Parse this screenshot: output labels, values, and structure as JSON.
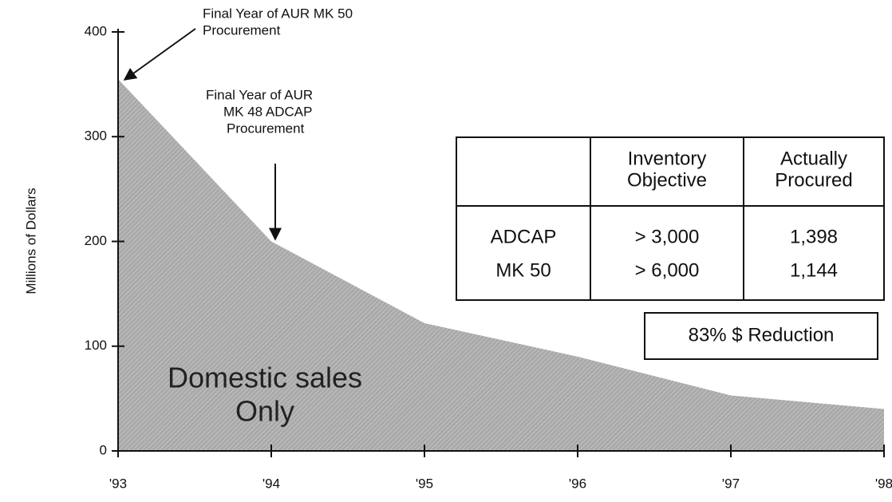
{
  "chart_data": {
    "type": "area",
    "ylabel": "Millions of Dollars",
    "categories": [
      "'93",
      "'94",
      "'95",
      "'96",
      "'97",
      "'98"
    ],
    "values": [
      355,
      200,
      122,
      90,
      53,
      40
    ],
    "color": "#a9a9a9",
    "ylim": [
      0,
      400
    ],
    "yticks": [
      0,
      100,
      200,
      300,
      400
    ],
    "grid": false,
    "annotations": [
      {
        "lines": [
          "Final Year of AUR MK 50",
          "Procurement"
        ]
      },
      {
        "lines": [
          "Final Year of AUR",
          "MK 48 ADCAP",
          "Procurement"
        ]
      },
      {
        "lines": [
          "Domestic sales",
          "Only"
        ]
      },
      {
        "lines": [
          "83% $ Reduction"
        ]
      }
    ],
    "table": {
      "header": [
        [
          "Inventory",
          "Objective"
        ],
        [
          "Actually",
          "Procured"
        ]
      ],
      "rows": [
        [
          "ADCAP",
          "> 3,000",
          "1,398"
        ],
        [
          "MK 50",
          "> 6,000",
          "1,144"
        ]
      ]
    }
  }
}
